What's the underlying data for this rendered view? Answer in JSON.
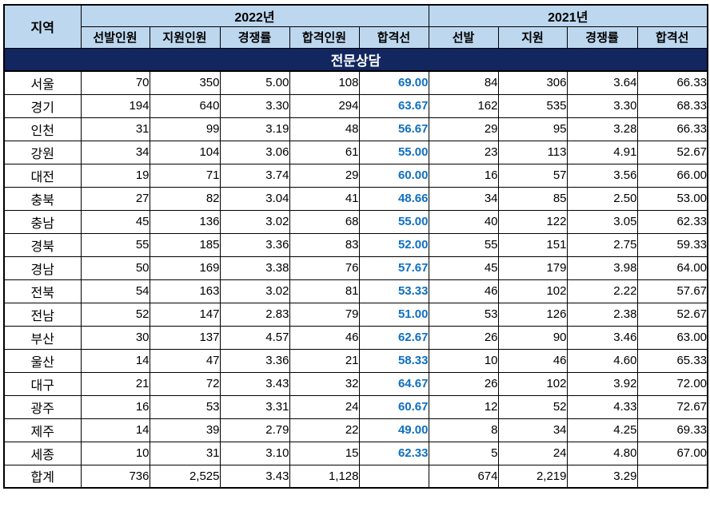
{
  "title": "전문상담",
  "colors": {
    "title_bg": "#12265F",
    "title_text": "#FFFFFF",
    "header_bg": "#BDD7EE",
    "cutoff_2022_text": "#0F6FC0",
    "border": "#000000"
  },
  "table": {
    "header": {
      "region": "지역",
      "groups": [
        {
          "label": "2022년",
          "colspan": 5
        },
        {
          "label": "2021년",
          "colspan": 4
        }
      ],
      "subheaders": [
        "선발인원",
        "지원인원",
        "경쟁률",
        "합격인원",
        "합격선",
        "선발",
        "지원",
        "경쟁률",
        "합격선"
      ]
    },
    "column_keys": [
      "region",
      "selected-2022",
      "applicants-2022",
      "ratio-2022",
      "passed-2022",
      "cutoff-2022",
      "selected-2021",
      "applicants-2021",
      "ratio-2021",
      "cutoff-2021"
    ],
    "rows": [
      [
        "서울",
        "70",
        "350",
        "5.00",
        "108",
        "69.00",
        "84",
        "306",
        "3.64",
        "66.33"
      ],
      [
        "경기",
        "194",
        "640",
        "3.30",
        "294",
        "63.67",
        "162",
        "535",
        "3.30",
        "68.33"
      ],
      [
        "인천",
        "31",
        "99",
        "3.19",
        "48",
        "56.67",
        "29",
        "95",
        "3.28",
        "66.33"
      ],
      [
        "강원",
        "34",
        "104",
        "3.06",
        "61",
        "55.00",
        "23",
        "113",
        "4.91",
        "52.67"
      ],
      [
        "대전",
        "19",
        "71",
        "3.74",
        "29",
        "60.00",
        "16",
        "57",
        "3.56",
        "66.00"
      ],
      [
        "충북",
        "27",
        "82",
        "3.04",
        "41",
        "48.66",
        "34",
        "85",
        "2.50",
        "53.00"
      ],
      [
        "충남",
        "45",
        "136",
        "3.02",
        "68",
        "55.00",
        "40",
        "122",
        "3.05",
        "62.33"
      ],
      [
        "경북",
        "55",
        "185",
        "3.36",
        "83",
        "52.00",
        "55",
        "151",
        "2.75",
        "59.33"
      ],
      [
        "경남",
        "50",
        "169",
        "3.38",
        "76",
        "57.67",
        "45",
        "179",
        "3.98",
        "64.00"
      ],
      [
        "전북",
        "54",
        "163",
        "3.02",
        "81",
        "53.33",
        "46",
        "102",
        "2.22",
        "57.67"
      ],
      [
        "전남",
        "52",
        "147",
        "2.83",
        "79",
        "51.00",
        "53",
        "126",
        "2.38",
        "52.67"
      ],
      [
        "부산",
        "30",
        "137",
        "4.57",
        "46",
        "62.67",
        "26",
        "90",
        "3.46",
        "63.00"
      ],
      [
        "울산",
        "14",
        "47",
        "3.36",
        "21",
        "58.33",
        "10",
        "46",
        "4.60",
        "65.33"
      ],
      [
        "대구",
        "21",
        "72",
        "3.43",
        "32",
        "64.67",
        "26",
        "102",
        "3.92",
        "72.00"
      ],
      [
        "광주",
        "16",
        "53",
        "3.31",
        "24",
        "60.67",
        "12",
        "52",
        "4.33",
        "72.67"
      ],
      [
        "제주",
        "14",
        "39",
        "2.79",
        "22",
        "49.00",
        "8",
        "34",
        "4.25",
        "69.33"
      ],
      [
        "세종",
        "10",
        "31",
        "3.10",
        "15",
        "62.33",
        "5",
        "24",
        "4.80",
        "67.00"
      ]
    ],
    "total_row": [
      "합계",
      "736",
      "2,525",
      "3.43",
      "1,128",
      "",
      "674",
      "2,219",
      "3.29",
      ""
    ]
  }
}
